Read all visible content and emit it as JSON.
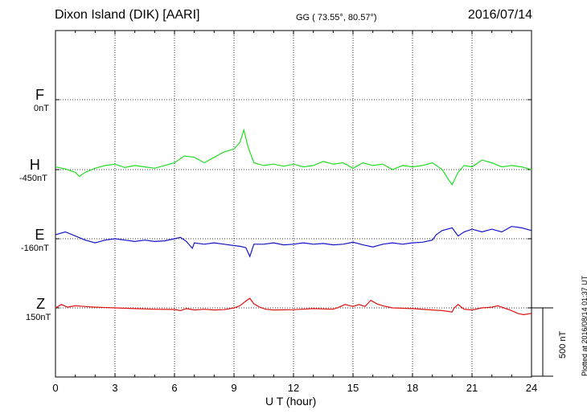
{
  "header": {
    "station": "Dixon Island (DIK)  [AARI]",
    "coords": "GG ( 73.55°,  80.57°)",
    "date": "2016/07/14"
  },
  "channels": [
    {
      "name": "F",
      "base": "0nT",
      "color": "#f2a400"
    },
    {
      "name": "H",
      "base": "-450nT",
      "color": "#22dd22"
    },
    {
      "name": "E",
      "base": "-160nT",
      "color": "#1414c8"
    },
    {
      "name": "Z",
      "base": "150nT",
      "color": "#e01010"
    }
  ],
  "scale_bar": {
    "label": "500 nT",
    "value": 500
  },
  "plotted_note": "Plotted at 2016/08/14 01:37 UT",
  "chart_data": {
    "type": "line",
    "xlabel": "U T (hour)",
    "xlim": [
      0,
      24
    ],
    "xticks": [
      "0",
      "3",
      "6",
      "9",
      "12",
      "15",
      "18",
      "21",
      "24"
    ],
    "series": [
      {
        "name": "H",
        "color": "#22dd22",
        "x": [
          0,
          0.5,
          1,
          1.2,
          1.5,
          2,
          2.5,
          3,
          3.5,
          4,
          4.5,
          5,
          5.5,
          6,
          6.5,
          7,
          7.5,
          8,
          8.5,
          9,
          9.3,
          9.5,
          9.7,
          10,
          10.5,
          11,
          11.5,
          12,
          12.5,
          13,
          13.5,
          14,
          14.5,
          15,
          15.5,
          16,
          16.5,
          17,
          17.5,
          18,
          18.5,
          19,
          19.5,
          19.8,
          20,
          20.3,
          20.6,
          21,
          21.5,
          22,
          22.5,
          23,
          23.5,
          24
        ],
        "y": [
          -430,
          -445,
          -470,
          -500,
          -470,
          -440,
          -420,
          -410,
          -435,
          -420,
          -430,
          -440,
          -420,
          -400,
          -350,
          -360,
          -400,
          -360,
          -320,
          -300,
          -250,
          -160,
          -280,
          -400,
          -420,
          -410,
          -425,
          -410,
          -430,
          -420,
          -390,
          -410,
          -400,
          -440,
          -400,
          -420,
          -410,
          -450,
          -420,
          -430,
          -420,
          -400,
          -450,
          -520,
          -560,
          -470,
          -420,
          -430,
          -380,
          -400,
          -430,
          -420,
          -430,
          -450
        ]
      },
      {
        "name": "E",
        "color": "#1414c8",
        "x": [
          0,
          0.5,
          1,
          1.5,
          2,
          2.5,
          3,
          3.5,
          4,
          4.5,
          5,
          5.5,
          6,
          6.3,
          6.6,
          6.9,
          7,
          7.5,
          8,
          8.5,
          9,
          9.3,
          9.6,
          9.8,
          10,
          10.5,
          11,
          11.5,
          12,
          12.5,
          13,
          13.5,
          14,
          14.5,
          15,
          15.5,
          16,
          16.5,
          17,
          17.5,
          18,
          18.5,
          19,
          19.2,
          19.5,
          20,
          20.3,
          20.6,
          21,
          21.5,
          22,
          22.5,
          23,
          23.5,
          24
        ],
        "y": [
          -130,
          -110,
          -140,
          -170,
          -190,
          -170,
          -160,
          -170,
          -180,
          -170,
          -180,
          -175,
          -160,
          -150,
          -180,
          -230,
          -190,
          -200,
          -190,
          -200,
          -210,
          -215,
          -225,
          -290,
          -200,
          -200,
          -190,
          -205,
          -200,
          -190,
          -200,
          -195,
          -205,
          -200,
          -185,
          -205,
          -220,
          -200,
          -190,
          -200,
          -190,
          -185,
          -170,
          -130,
          -100,
          -80,
          -140,
          -110,
          -90,
          -110,
          -90,
          -110,
          -70,
          -80,
          -100
        ]
      },
      {
        "name": "Z",
        "color": "#e01010",
        "x": [
          0,
          0.3,
          0.6,
          1,
          1.5,
          2,
          3,
          4,
          5,
          6,
          6.3,
          6.6,
          7,
          7.5,
          8,
          8.5,
          9,
          9.3,
          9.6,
          9.8,
          10,
          10.3,
          10.6,
          11,
          12,
          13,
          14,
          14.3,
          14.6,
          15,
          15.3,
          15.6,
          15.9,
          16.2,
          16.5,
          17,
          18,
          19,
          19.5,
          20,
          20.1,
          20.3,
          20.6,
          21,
          21.5,
          22,
          22.3,
          22.6,
          23,
          23.3,
          23.6,
          24
        ],
        "y": [
          150,
          175,
          155,
          165,
          160,
          155,
          150,
          145,
          140,
          138,
          130,
          145,
          135,
          140,
          135,
          137,
          150,
          165,
          200,
          220,
          180,
          155,
          140,
          135,
          137,
          145,
          140,
          155,
          175,
          160,
          175,
          160,
          205,
          180,
          165,
          150,
          145,
          135,
          130,
          120,
          150,
          175,
          140,
          135,
          150,
          155,
          165,
          150,
          130,
          110,
          100,
          110
        ]
      }
    ]
  }
}
